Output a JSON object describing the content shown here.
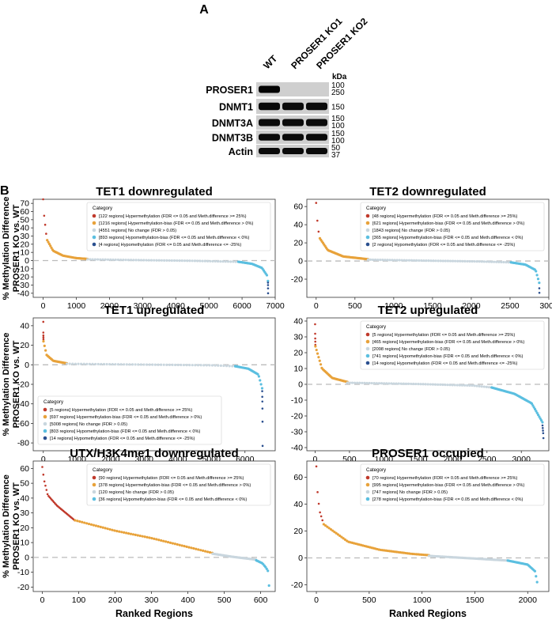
{
  "panel_labels": {
    "a": "A",
    "b": "B"
  },
  "western_blot": {
    "lanes": [
      "WT",
      "PROSER1 KO1",
      "PROSER1 KO2"
    ],
    "kda_header": "kDa",
    "rows": [
      {
        "name": "PROSER1",
        "markers": [
          "100",
          "250"
        ],
        "band_intensity": [
          1.0,
          0.0,
          0.0
        ]
      },
      {
        "name": "DNMT1",
        "markers": [
          "150"
        ],
        "band_intensity": [
          0.95,
          0.9,
          0.9
        ]
      },
      {
        "name": "DNMT3A",
        "markers": [
          "150",
          "100"
        ],
        "band_intensity": [
          0.9,
          0.9,
          0.9
        ]
      },
      {
        "name": "DNMT3B",
        "markers": [
          "150",
          "100"
        ],
        "band_intensity": [
          0.9,
          0.9,
          0.9
        ]
      },
      {
        "name": "Actin",
        "markers": [
          "50",
          "37"
        ],
        "band_intensity": [
          0.9,
          0.9,
          0.9
        ]
      }
    ]
  },
  "legend_title": "Category",
  "category_colors": {
    "hyper": "#c0392b",
    "hyperbias": "#e8a23a",
    "nochange": "#c9d6de",
    "hypobias": "#5bbfe0",
    "hypo": "#2a4f8f"
  },
  "ylabel_lines": [
    "% Methylation Difference",
    "PROSER1 KO vs. WT"
  ],
  "xlabel": "Ranked Regions",
  "chart_data": [
    {
      "type": "scatter",
      "title": "TET1 downregulated",
      "xlabel": "",
      "ylabel": "% Methylation Difference PROSER1 KO vs. WT",
      "xlim": [
        -300,
        7000
      ],
      "ylim": [
        -45,
        75
      ],
      "xticks": [
        "0",
        "1000",
        "2000",
        "3000",
        "4000",
        "5000",
        "6000",
        "7000"
      ],
      "yticks": [
        "-40",
        "-30",
        "-20",
        "-10",
        "0",
        "10",
        "20",
        "30",
        "40",
        "50",
        "60",
        "70"
      ],
      "legend_position": "top-right",
      "legend": [
        {
          "key": "hyper",
          "label": "[122 regions] Hypermethylation (FDR <= 0.05 and Meth.difference >= 25%)"
        },
        {
          "key": "hyperbias",
          "label": "[1216 regions] Hypermethylation-bias (FDR <= 0.05 and Meth.difference > 0%)"
        },
        {
          "key": "nochange",
          "label": "[4551 regions] No change (FDR > 0.05)"
        },
        {
          "key": "hypobias",
          "label": "[893 regions] Hypomethylation-bias (FDR <= 0.05 and Meth.difference < 0%)"
        },
        {
          "key": "hypo",
          "label": "[4 regions] Hypomethylation (FDR <= 0.05 and Meth.difference <= -25%)"
        }
      ],
      "series": [
        {
          "key": "hyper",
          "x": [
            0,
            30,
            60,
            90,
            121
          ],
          "y": [
            75,
            55,
            44,
            33,
            25
          ]
        },
        {
          "key": "hyperbias",
          "x": [
            122,
            300,
            600,
            1000,
            1337
          ],
          "y": [
            25,
            12,
            6,
            3,
            2
          ]
        },
        {
          "key": "nochange",
          "x": [
            1338,
            3000,
            4500,
            5888
          ],
          "y": [
            1.5,
            0.5,
            -0.3,
            -1.5
          ]
        },
        {
          "key": "hypobias",
          "x": [
            5889,
            6300,
            6600,
            6750,
            6781
          ],
          "y": [
            -1.5,
            -4,
            -9,
            -18,
            -25
          ]
        },
        {
          "key": "hypo",
          "x": [
            6782,
            6783,
            6784,
            6785
          ],
          "y": [
            -27,
            -30,
            -34,
            -40
          ]
        }
      ]
    },
    {
      "type": "scatter",
      "title": "TET2 downregulated",
      "xlabel": "",
      "ylabel": "",
      "xlim": [
        -120,
        3000
      ],
      "ylim": [
        -40,
        68
      ],
      "xticks": [
        "0",
        "500",
        "1000",
        "1500",
        "2000",
        "2500",
        "3000"
      ],
      "yticks": [
        "-20",
        "0",
        "20",
        "40",
        "60"
      ],
      "legend_position": "top-right",
      "legend": [
        {
          "key": "hyper",
          "label": "[48 regions] Hypermethylation (FDR <= 0.05 and Meth.difference >= 25%)"
        },
        {
          "key": "hyperbias",
          "label": "[621 regions] Hypermethylation-bias (FDR <= 0.05 and Meth.difference > 0%)"
        },
        {
          "key": "nochange",
          "label": "[1843 regions] No change (FDR > 0.05)"
        },
        {
          "key": "hypobias",
          "label": "[365 regions] Hypomethylation-bias (FDR <= 0.05 and Meth.difference < 0%)"
        },
        {
          "key": "hypo",
          "label": "[2 regions] Hypomethylation (FDR <= 0.05 and Meth.difference <= -25%)"
        }
      ],
      "series": [
        {
          "key": "hyper",
          "x": [
            0,
            15,
            30,
            47
          ],
          "y": [
            64,
            45,
            33,
            25
          ]
        },
        {
          "key": "hyperbias",
          "x": [
            48,
            150,
            350,
            668
          ],
          "y": [
            25,
            12,
            5,
            2
          ]
        },
        {
          "key": "nochange",
          "x": [
            669,
            1500,
            2100,
            2511
          ],
          "y": [
            1.5,
            0.3,
            -0.5,
            -1.5
          ]
        },
        {
          "key": "hypobias",
          "x": [
            2512,
            2700,
            2830,
            2876
          ],
          "y": [
            -1.5,
            -4,
            -10,
            -24
          ]
        },
        {
          "key": "hypo",
          "x": [
            2877,
            2878
          ],
          "y": [
            -30,
            -35
          ]
        }
      ]
    },
    {
      "type": "scatter",
      "title": "TET1 upregulated",
      "xlabel": "",
      "ylabel": "% Methylation Difference PROSER1 KO vs. WT",
      "xlim": [
        -300,
        6900
      ],
      "ylim": [
        -88,
        48
      ],
      "xticks": [
        "0",
        "1000",
        "2000",
        "3000",
        "4000",
        "5000",
        "6000"
      ],
      "yticks": [
        "-80",
        "-60",
        "-40",
        "-20",
        "0",
        "20",
        "40"
      ],
      "legend_position": "bottom-left",
      "legend": [
        {
          "key": "hyper",
          "label": "[5 regions] Hypermethylation (FDR <= 0.05 and Meth.difference >= 25%)"
        },
        {
          "key": "hyperbias",
          "label": "[697 regions] Hypermethylation-bias (FDR <= 0.05 and Meth.difference > 0%)"
        },
        {
          "key": "nochange",
          "label": "[5008 regions] No change (FDR > 0.05)"
        },
        {
          "key": "hypobias",
          "label": "[803 regions] Hypomethylation-bias (FDR <= 0.05 and Meth.difference < 0%)"
        },
        {
          "key": "hypo",
          "label": "[14 regions] Hypomethylation (FDR <= 0.05 and Meth.difference <= -25%)"
        }
      ],
      "series": [
        {
          "key": "hyper",
          "x": [
            0,
            1,
            2,
            3,
            4
          ],
          "y": [
            44,
            33,
            30,
            28,
            26
          ]
        },
        {
          "key": "hyperbias",
          "x": [
            5,
            100,
            300,
            700
          ],
          "y": [
            24,
            10,
            4,
            1.5
          ]
        },
        {
          "key": "nochange",
          "x": [
            702,
            3000,
            5000,
            5709
          ],
          "y": [
            1,
            0.2,
            -0.5,
            -1.5
          ]
        },
        {
          "key": "hypobias",
          "x": [
            5710,
            6100,
            6400,
            6511
          ],
          "y": [
            -1.5,
            -4,
            -10,
            -24
          ]
        },
        {
          "key": "hypo",
          "x": [
            6513,
            6515,
            6518,
            6520,
            6522,
            6525
          ],
          "y": [
            -27,
            -32,
            -38,
            -44,
            -52,
            -83
          ]
        }
      ]
    },
    {
      "type": "scatter",
      "title": "TET2 upregulated",
      "xlabel": "",
      "ylabel": "",
      "xlim": [
        -120,
        3400
      ],
      "ylim": [
        -42,
        42
      ],
      "xticks": [
        "0",
        "500",
        "1000",
        "1500",
        "2000",
        "2500",
        "3000"
      ],
      "yticks": [
        "-40",
        "-30",
        "-20",
        "-10",
        "0",
        "10",
        "20",
        "30",
        "40"
      ],
      "legend_position": "top-right",
      "legend": [
        {
          "key": "hyper",
          "label": "[5 regions] Hypermethylation (FDR <= 0.05 and Meth.difference >= 25%)"
        },
        {
          "key": "hyperbias",
          "label": "[465 regions] Hypermethylation-bias (FDR <= 0.05 and Meth.difference > 0%)"
        },
        {
          "key": "nochange",
          "label": "[2098 regions] No change (FDR > 0.05)"
        },
        {
          "key": "hypobias",
          "label": "[741 regions] Hypomethylation-bias (FDR <= 0.05 and Meth.difference < 0%)"
        },
        {
          "key": "hypo",
          "label": "[14 regions] Hypomethylation (FDR <= 0.05 and Meth.difference <= -25%)"
        }
      ],
      "series": [
        {
          "key": "hyper",
          "x": [
            0,
            1,
            2,
            3,
            4
          ],
          "y": [
            38,
            32,
            29,
            27,
            25
          ]
        },
        {
          "key": "hyperbias",
          "x": [
            5,
            100,
            250,
            469
          ],
          "y": [
            24,
            10,
            4,
            1.5
          ]
        },
        {
          "key": "nochange",
          "x": [
            470,
            1500,
            2300,
            2567
          ],
          "y": [
            1,
            0.2,
            -0.8,
            -2
          ]
        },
        {
          "key": "hypobias",
          "x": [
            2568,
            2900,
            3150,
            3307
          ],
          "y": [
            -2,
            -6,
            -12,
            -24
          ]
        },
        {
          "key": "hypo",
          "x": [
            3308,
            3312,
            3316,
            3320,
            3321
          ],
          "y": [
            -26,
            -28,
            -30,
            -32,
            -34
          ]
        }
      ]
    },
    {
      "type": "scatter",
      "title": "UTX/H3K4me1 downregulated",
      "xlabel": "Ranked Regions",
      "ylabel": "% Methylation Difference PROSER1 KO vs. WT",
      "xlim": [
        -25,
        640
      ],
      "ylim": [
        -23,
        65
      ],
      "xticks": [
        "0",
        "100",
        "200",
        "300",
        "400",
        "500",
        "600"
      ],
      "yticks": [
        "-20",
        "-10",
        "0",
        "10",
        "20",
        "30",
        "40",
        "50",
        "60"
      ],
      "legend_position": "top-right",
      "legend": [
        {
          "key": "hyper",
          "label": "[90 regions] Hypermethylation (FDR <= 0.05 and Meth.difference >= 25%)"
        },
        {
          "key": "hyperbias",
          "label": "[378 regions] Hypermethylation-bias (FDR <= 0.05 and Meth.difference > 0%)"
        },
        {
          "key": "nochange",
          "label": "[120 regions] No change (FDR > 0.05)"
        },
        {
          "key": "hypobias",
          "label": "[36 regions] Hypomethylation-bias (FDR <= 0.05 and Meth.difference < 0%)"
        }
      ],
      "series": [
        {
          "key": "hyper",
          "x": [
            0,
            5,
            15,
            40,
            89
          ],
          "y": [
            61,
            52,
            42,
            35,
            25
          ]
        },
        {
          "key": "hyperbias",
          "x": [
            90,
            200,
            300,
            400,
            467
          ],
          "y": [
            25,
            18,
            13,
            7,
            3
          ]
        },
        {
          "key": "nochange",
          "x": [
            468,
            520,
            587
          ],
          "y": [
            2.5,
            0.5,
            -1.5
          ]
        },
        {
          "key": "hypobias",
          "x": [
            588,
            605,
            615,
            622,
            623
          ],
          "y": [
            -2,
            -4,
            -7,
            -10,
            -19
          ]
        }
      ]
    },
    {
      "type": "scatter",
      "title": "PROSER1 occupied",
      "xlabel": "Ranked Regions",
      "ylabel": "",
      "xlim": [
        -90,
        2200
      ],
      "ylim": [
        -25,
        72
      ],
      "xticks": [
        "0",
        "500",
        "1000",
        "1500",
        "2000"
      ],
      "yticks": [
        "-20",
        "0",
        "20",
        "40",
        "60"
      ],
      "legend_position": "top-right",
      "legend": [
        {
          "key": "hyper",
          "label": "[70 regions] Hypermethylation (FDR <= 0.05 and Meth.difference >= 25%)"
        },
        {
          "key": "hyperbias",
          "label": "[995 regions] Hypermethylation-bias (FDR <= 0.05 and Meth.difference > 0%)"
        },
        {
          "key": "nochange",
          "label": "[747 regions] No change (FDR > 0.05)"
        },
        {
          "key": "hypobias",
          "label": "[278 regions] Hypomethylation-bias (FDR <= 0.05 and Meth.difference < 0%)"
        }
      ],
      "series": [
        {
          "key": "hyper",
          "x": [
            0,
            10,
            30,
            69
          ],
          "y": [
            68,
            50,
            35,
            25
          ]
        },
        {
          "key": "hyperbias",
          "x": [
            70,
            300,
            600,
            900,
            1064
          ],
          "y": [
            25,
            12,
            6,
            3,
            2
          ]
        },
        {
          "key": "nochange",
          "x": [
            1065,
            1500,
            1811
          ],
          "y": [
            1.5,
            -0.5,
            -2
          ]
        },
        {
          "key": "hypobias",
          "x": [
            1812,
            2000,
            2070,
            2089
          ],
          "y": [
            -2,
            -5,
            -10,
            -18
          ]
        }
      ]
    }
  ]
}
